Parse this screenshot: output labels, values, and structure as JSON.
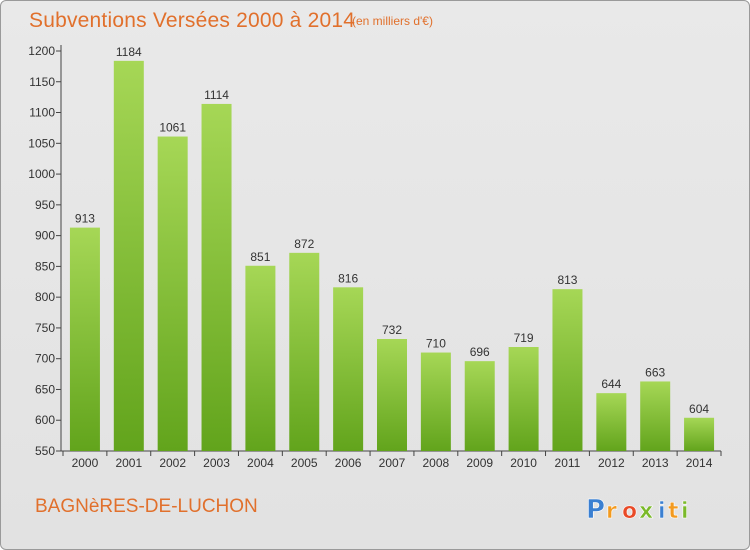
{
  "title": "Subventions Versées 2000 à 2014",
  "unit_note": "(en milliers d'€)",
  "commune": "BAGNèRES-DE-LUCHON",
  "logo": {
    "letters": [
      "P",
      "r",
      "o",
      "x",
      "i",
      "t",
      "i"
    ],
    "colors": [
      "#3a7fd1",
      "#f39a1e",
      "#e94a27",
      "#7ab929",
      "#3a7fd1",
      "#f39a1e",
      "#7ab929"
    ]
  },
  "colors": {
    "bar_top": "#a6d756",
    "bar_bottom": "#62a41c",
    "accent": "#e1702c"
  },
  "chart_data": {
    "type": "bar",
    "categories": [
      "2000",
      "2001",
      "2002",
      "2003",
      "2004",
      "2005",
      "2006",
      "2007",
      "2008",
      "2009",
      "2010",
      "2011",
      "2012",
      "2013",
      "2014"
    ],
    "values": [
      913,
      1184,
      1061,
      1114,
      851,
      872,
      816,
      732,
      710,
      696,
      719,
      813,
      644,
      663,
      604
    ],
    "title": "Subventions Versées 2000 à 2014",
    "ylim": [
      550,
      1200
    ],
    "yticks": [
      550,
      600,
      650,
      700,
      750,
      800,
      850,
      900,
      950,
      1000,
      1050,
      1100,
      1150,
      1200
    ],
    "grid": false
  }
}
